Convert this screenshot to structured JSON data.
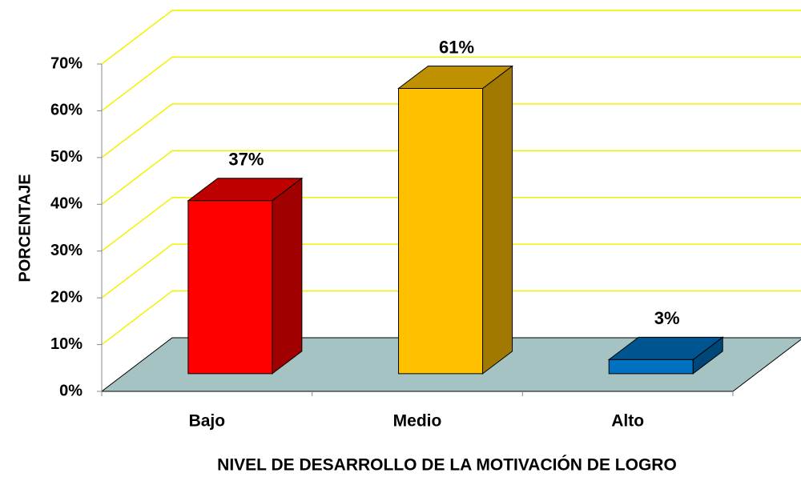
{
  "chart_data": {
    "type": "bar3d",
    "categories": [
      "Bajo",
      "Medio",
      "Alto"
    ],
    "values": [
      37,
      61,
      3
    ],
    "value_labels": [
      "37%",
      "61%",
      "3%"
    ],
    "colors": [
      "#ff0000",
      "#ffc000",
      "#0070c0"
    ],
    "ylim": [
      0,
      70
    ],
    "yticks": [
      {
        "value": 0,
        "label": "0%"
      },
      {
        "value": 10,
        "label": "10%"
      },
      {
        "value": 20,
        "label": "20%"
      },
      {
        "value": 30,
        "label": "30%"
      },
      {
        "value": 40,
        "label": "40%"
      },
      {
        "value": 50,
        "label": "50%"
      },
      {
        "value": 60,
        "label": "60%"
      },
      {
        "value": 70,
        "label": "70%"
      }
    ],
    "grid": true,
    "ylabel": "PORCENTAJE",
    "xlabel": "NIVEL DE DESARROLLO DE LA MOTIVACIÓN DE LOGRO"
  }
}
